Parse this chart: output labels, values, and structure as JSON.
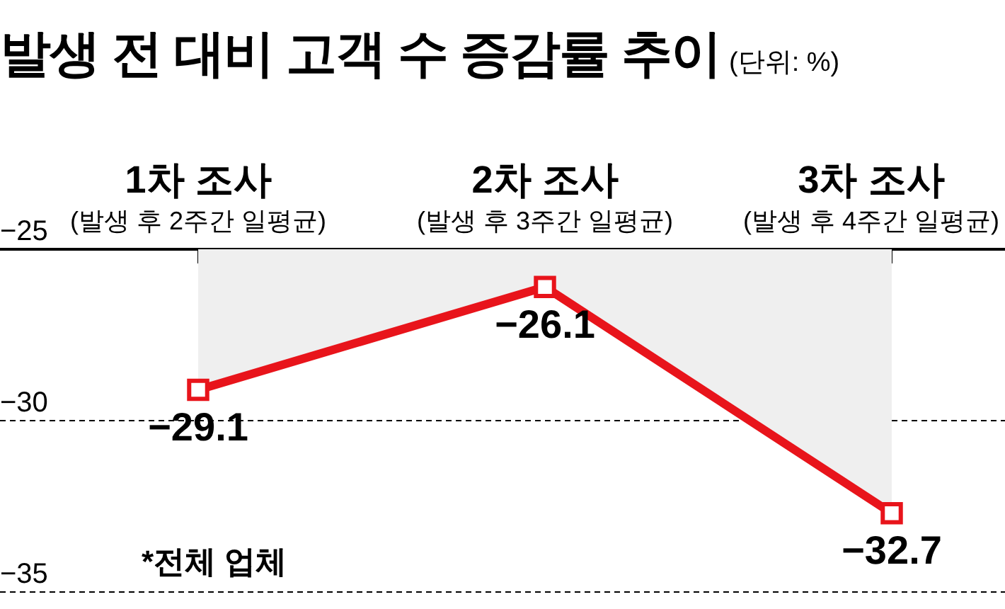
{
  "chart_data": {
    "type": "line",
    "title": "발생 전 대비 고객 수  증감률 추이",
    "subtitle": "(단위: %)",
    "categories": [
      "1차 조사\n(발생 후 2주간 일평균)",
      "2차 조사\n(발생 후 3주간 일평균)",
      "3차 조사\n(발생 후 4주간 일평균)"
    ],
    "series": [
      {
        "color": "#e8141b",
        "values": [
          -29.1,
          -26.1,
          -32.7
        ]
      }
    ],
    "ylim": [
      -35,
      -25
    ],
    "yticks": [
      -35,
      -30,
      -25
    ],
    "grid": "y",
    "marker": "square",
    "line_style": "solid",
    "data_labels": true,
    "legend": false,
    "annotations": [
      "*전체 업체"
    ]
  }
}
